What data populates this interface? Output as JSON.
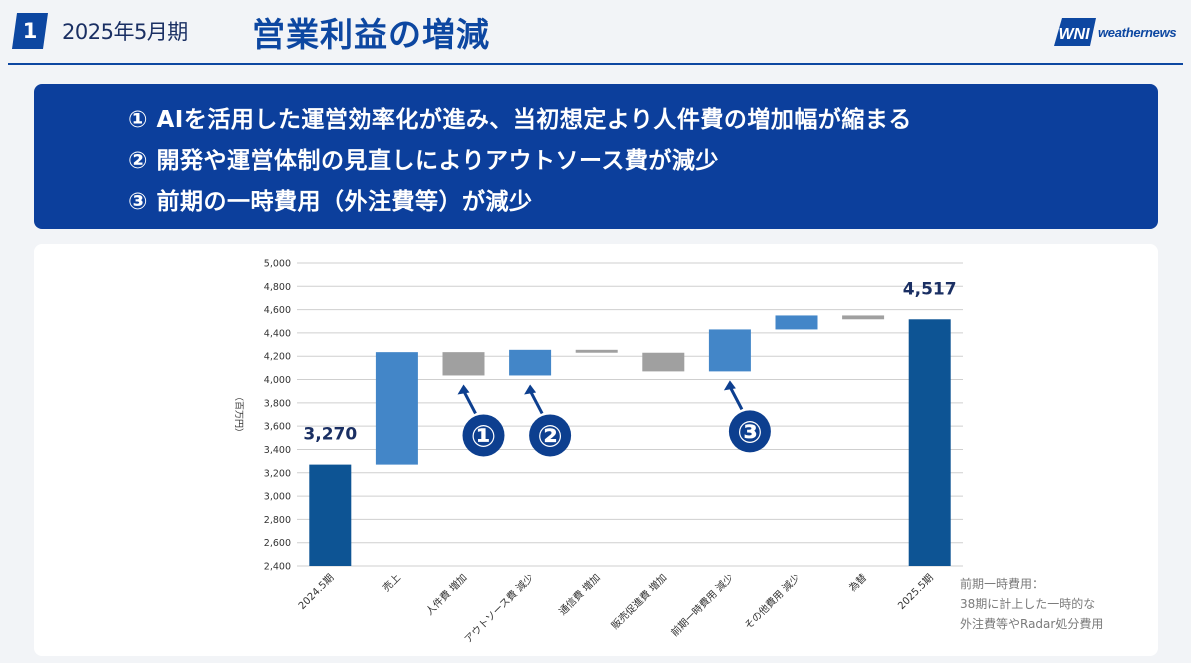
{
  "header": {
    "section_number": "1",
    "period": "2025年5月期",
    "title": "営業利益の増減",
    "logo_mark": "WNI",
    "logo_text": "weathernews"
  },
  "banner": {
    "lines": [
      "① AIを活用した運営効率化が進み、当初想定より人件費の増加幅が縮まる",
      "② 開発や運営体制の見直しによりアウトソース費が減少",
      "③ 前期の一時費用（外注費等）が減少"
    ]
  },
  "note": {
    "lines": [
      "前期一時費用：",
      "38期に計上した一時的な",
      "外注費等やRadar処分費用"
    ]
  },
  "colors": {
    "total": "#0d5494",
    "increase": "#4386c8",
    "cost": "#a0a0a0",
    "marker": "#0d3f8f",
    "text_dark": "#1a2f63"
  },
  "chart_data": {
    "type": "bar",
    "subtype": "waterfall",
    "ylabel": "（百万円）",
    "ylim": [
      2400,
      5000
    ],
    "yticks": [
      "2,400",
      "2,600",
      "2,800",
      "3,000",
      "3,200",
      "3,400",
      "3,600",
      "3,800",
      "4,000",
      "4,200",
      "4,400",
      "4,600",
      "4,800",
      "5,000"
    ],
    "grid": true,
    "categories": [
      "2024.5期",
      "売上",
      "人件費 増加",
      "アウトソース費 減少",
      "通信費 増加",
      "販売促進費 増加",
      "前期一時費用 減少",
      "その他費用 減少",
      "為替",
      "2025.5期"
    ],
    "bars": [
      {
        "kind": "total",
        "base": 0,
        "end": 3270
      },
      {
        "kind": "increase",
        "base": 3270,
        "end": 4235
      },
      {
        "kind": "cost",
        "base": 4235,
        "end": 4035
      },
      {
        "kind": "increase",
        "base": 4035,
        "end": 4255
      },
      {
        "kind": "cost",
        "base": 4255,
        "end": 4230
      },
      {
        "kind": "cost",
        "base": 4230,
        "end": 4070
      },
      {
        "kind": "increase",
        "base": 4070,
        "end": 4430
      },
      {
        "kind": "increase",
        "base": 4430,
        "end": 4550
      },
      {
        "kind": "cost",
        "base": 4550,
        "end": 4517
      },
      {
        "kind": "total",
        "base": 0,
        "end": 4517
      }
    ],
    "value_labels": [
      {
        "bar": 0,
        "text": "3,270"
      },
      {
        "bar": 9,
        "text": "4,517"
      }
    ],
    "markers": [
      {
        "bar": 2,
        "text": "①"
      },
      {
        "bar": 3,
        "text": "②"
      },
      {
        "bar": 6,
        "text": "③"
      }
    ]
  }
}
